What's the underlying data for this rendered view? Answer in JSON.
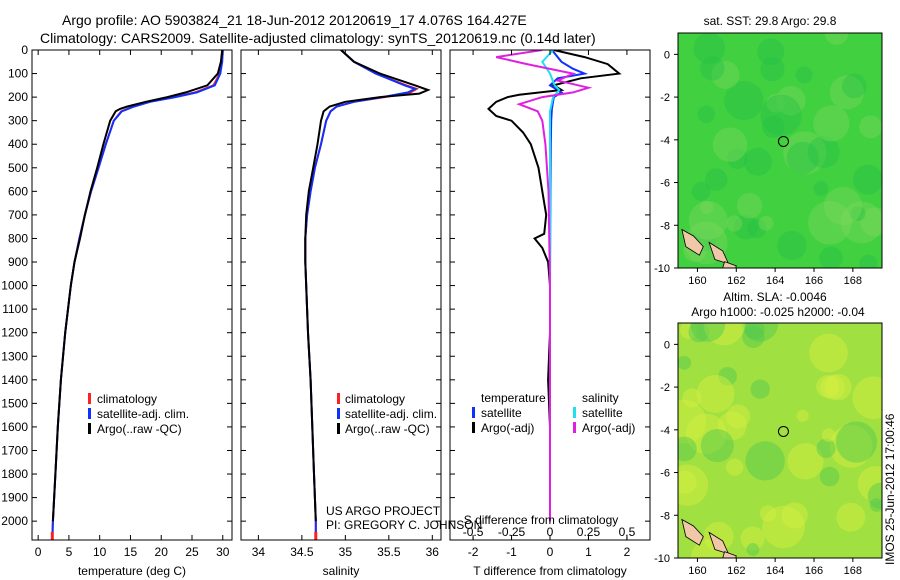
{
  "header": {
    "title_line1": "Argo profile: AO 5903824_21 18-Jun-2012 20120619_17 4.076S 164.427E",
    "title_line2": "Climatology: CARS2009. Satellite-adjusted climatology: synTS_20120619.nc (0.14d later)"
  },
  "credits": {
    "project": "US ARGO PROJECT",
    "pi": "PI: GREGORY C. JOHNSON",
    "stamp": "IMOS 25-Jun-2012 17:00:46"
  },
  "colors": {
    "climatology": "#ff2020",
    "satellite": "#1030ff",
    "argo": "#000000",
    "salinity_satellite": "#20e0f0",
    "salinity_argo": "#e020e0",
    "land": "#f0c8a8",
    "sst_map": "#40d040",
    "sla_map": "#a0e040"
  },
  "chart_data": [
    {
      "type": "line",
      "xlabel": "temperature (deg C)",
      "ylabel": "",
      "xlim": [
        -1,
        31.5
      ],
      "ylim": [
        2080,
        0
      ],
      "xticks": [
        0,
        5,
        10,
        15,
        20,
        25,
        30
      ],
      "yticks": [
        0,
        100,
        200,
        300,
        400,
        500,
        600,
        700,
        800,
        900,
        1000,
        1100,
        1200,
        1300,
        1400,
        1500,
        1600,
        1700,
        1800,
        1900,
        2000
      ],
      "legend": [
        "climatology",
        "satellite-adj. clim.",
        "Argo(..raw -QC)"
      ],
      "series": [
        {
          "name": "climatology",
          "depth": [
            0,
            50,
            100,
            150,
            180,
            200,
            220,
            240,
            260,
            300,
            400,
            500,
            600,
            700,
            800,
            900,
            1000,
            1200,
            1400,
            1600,
            1800,
            2000,
            2080
          ],
          "values": [
            29.9,
            29.8,
            29.5,
            28.5,
            25.5,
            22.0,
            18.0,
            15.5,
            13.5,
            12.3,
            11.0,
            9.8,
            8.6,
            7.6,
            6.7,
            5.9,
            5.3,
            4.4,
            3.7,
            3.2,
            2.8,
            2.4,
            2.3
          ]
        },
        {
          "name": "satellite-adj. clim.",
          "depth": [
            0,
            50,
            100,
            150,
            180,
            200,
            220,
            240,
            260,
            300,
            400,
            500,
            600,
            700,
            800,
            900,
            1000,
            1200,
            1400,
            1600,
            1800,
            2000,
            2080
          ],
          "values": [
            30.0,
            29.9,
            29.6,
            28.7,
            25.8,
            22.3,
            18.2,
            15.6,
            13.6,
            12.3,
            11.0,
            9.8,
            8.6,
            7.6,
            6.7,
            5.9,
            5.3,
            4.4,
            3.7,
            3.2,
            2.8,
            2.4,
            2.3
          ]
        },
        {
          "name": "Argo(..raw -QC)",
          "depth": [
            0,
            50,
            100,
            150,
            180,
            200,
            220,
            240,
            250,
            260,
            300,
            400,
            500,
            600,
            700,
            800,
            900,
            1000,
            1200,
            1400,
            1600,
            1800,
            2000
          ],
          "values": [
            29.9,
            29.7,
            29.2,
            27.5,
            24.0,
            21.0,
            17.5,
            14.5,
            13.3,
            12.6,
            11.7,
            10.6,
            9.6,
            8.5,
            7.6,
            6.8,
            5.9,
            5.3,
            4.4,
            3.7,
            3.2,
            2.8,
            2.4
          ]
        }
      ]
    },
    {
      "type": "line",
      "xlabel": "salinity",
      "ylabel": "",
      "xlim": [
        33.8,
        36.1
      ],
      "ylim": [
        2080,
        0
      ],
      "xticks": [
        34,
        34.5,
        35,
        35.5,
        36
      ],
      "legend": [
        "climatology",
        "satellite-adj. clim.",
        "Argo(..raw -QC)"
      ],
      "series": [
        {
          "name": "climatology",
          "depth": [
            0,
            50,
            100,
            150,
            165,
            180,
            200,
            220,
            240,
            260,
            300,
            400,
            500,
            600,
            700,
            800,
            900,
            1000,
            1200,
            1400,
            1600,
            1800,
            2000,
            2080
          ],
          "values": [
            34.95,
            35.1,
            35.35,
            35.7,
            35.82,
            35.75,
            35.45,
            35.1,
            34.9,
            34.83,
            34.78,
            34.72,
            34.65,
            34.6,
            34.56,
            34.54,
            34.54,
            34.55,
            34.57,
            34.6,
            34.62,
            34.64,
            34.66,
            34.66
          ]
        },
        {
          "name": "satellite-adj. clim.",
          "depth": [
            0,
            50,
            100,
            150,
            165,
            180,
            200,
            220,
            240,
            260,
            300,
            400,
            500,
            600,
            700,
            800,
            900,
            1000,
            1200,
            1400,
            1600,
            1800,
            2000,
            2080
          ],
          "values": [
            34.95,
            35.1,
            35.35,
            35.68,
            35.8,
            35.72,
            35.43,
            35.1,
            34.9,
            34.83,
            34.78,
            34.72,
            34.65,
            34.6,
            34.56,
            34.54,
            34.54,
            34.55,
            34.57,
            34.6,
            34.62,
            34.64,
            34.66,
            34.66
          ]
        },
        {
          "name": "Argo(..raw -QC)",
          "depth": [
            0,
            50,
            100,
            150,
            170,
            185,
            200,
            220,
            240,
            260,
            300,
            400,
            500,
            600,
            700,
            800,
            900,
            1000,
            1200,
            1400,
            1600,
            1800,
            2000
          ],
          "values": [
            34.95,
            35.1,
            35.4,
            35.8,
            35.95,
            35.85,
            35.4,
            35.0,
            34.82,
            34.75,
            34.72,
            34.68,
            34.63,
            34.58,
            34.55,
            34.54,
            34.54,
            34.55,
            34.57,
            34.6,
            34.62,
            34.64,
            34.66
          ]
        }
      ]
    },
    {
      "type": "line",
      "xlabel": "T difference from climatology",
      "x2label": "S difference from climatology",
      "ylabel": "",
      "xlim": [
        -2.6,
        2.6
      ],
      "ylim": [
        2080,
        0
      ],
      "xticks": [
        -2,
        -1,
        0,
        1,
        2
      ],
      "x2ticks": [
        -0.5,
        -0.25,
        0,
        0.25,
        0.5
      ],
      "x2lim": [
        -0.65,
        0.65
      ],
      "legend_headers": [
        "temperature",
        "salinity"
      ],
      "legend": [
        "satellite",
        "Argo(-adj)",
        "satellite",
        "Argo(-adj)"
      ],
      "series": [
        {
          "name": "satellite",
          "quantity": "temperature",
          "depth": [
            0,
            50,
            80,
            100,
            120,
            150,
            180,
            200,
            250,
            300,
            400,
            600,
            1000,
            2000
          ],
          "values": [
            0.05,
            0.3,
            0.6,
            0.9,
            0.2,
            0.0,
            0.3,
            0.1,
            0.05,
            0.03,
            0.02,
            0.01,
            0.0,
            0.0
          ]
        },
        {
          "name": "Argo(-adj)",
          "quantity": "temperature",
          "depth": [
            0,
            30,
            60,
            100,
            120,
            150,
            170,
            190,
            200,
            220,
            250,
            280,
            300,
            350,
            400,
            500,
            600,
            700,
            780,
            800,
            840,
            900,
            1000,
            1200,
            1400,
            1600,
            1800,
            2000
          ],
          "values": [
            0.1,
            0.9,
            1.5,
            1.8,
            0.8,
            0.1,
            0.3,
            -0.8,
            -1.1,
            -1.4,
            -1.6,
            -1.4,
            -1.0,
            -0.7,
            -0.5,
            -0.3,
            -0.2,
            -0.1,
            -0.15,
            -0.4,
            -0.2,
            -0.05,
            0.0,
            0.0,
            -0.05,
            0.0,
            0.0,
            0.0
          ]
        },
        {
          "name": "satellite",
          "quantity": "salinity",
          "depth": [
            0,
            50,
            100,
            150,
            170,
            200,
            260,
            300,
            400,
            600,
            1000,
            2000
          ],
          "values": [
            0.02,
            -0.05,
            0.0,
            0.03,
            0.06,
            0.02,
            0.0,
            0.0,
            0.0,
            0.0,
            0.0,
            0.0
          ]
        },
        {
          "name": "Argo(-adj)",
          "quantity": "salinity",
          "depth": [
            0,
            30,
            60,
            100,
            130,
            160,
            180,
            200,
            230,
            260,
            300,
            400,
            600,
            1000,
            2000
          ],
          "values": [
            -0.05,
            -0.35,
            -0.15,
            0.15,
            0.05,
            0.25,
            0.15,
            -0.05,
            -0.2,
            -0.08,
            -0.05,
            -0.03,
            -0.01,
            0.0,
            0.0
          ]
        }
      ]
    },
    {
      "type": "heatmap",
      "title": "sat. SST: 29.8 Argo: 29.8",
      "xlim": [
        159,
        169.5
      ],
      "ylim": [
        -10,
        1
      ],
      "xticks": [
        160,
        162,
        164,
        166,
        168
      ],
      "yticks": [
        0,
        -2,
        -4,
        -6,
        -8,
        -10
      ],
      "marker": {
        "lon": 164.427,
        "lat": -4.076
      }
    },
    {
      "type": "heatmap",
      "title_line1": "Altim. SLA: -0.0046",
      "title_line2": "Argo h1000: -0.025 h2000: -0.04",
      "xlim": [
        159,
        169.5
      ],
      "ylim": [
        -10,
        1
      ],
      "xticks": [
        160,
        162,
        164,
        166,
        168
      ],
      "yticks": [
        0,
        -2,
        -4,
        -6,
        -8,
        -10
      ],
      "marker": {
        "lon": 164.427,
        "lat": -4.076
      }
    }
  ]
}
